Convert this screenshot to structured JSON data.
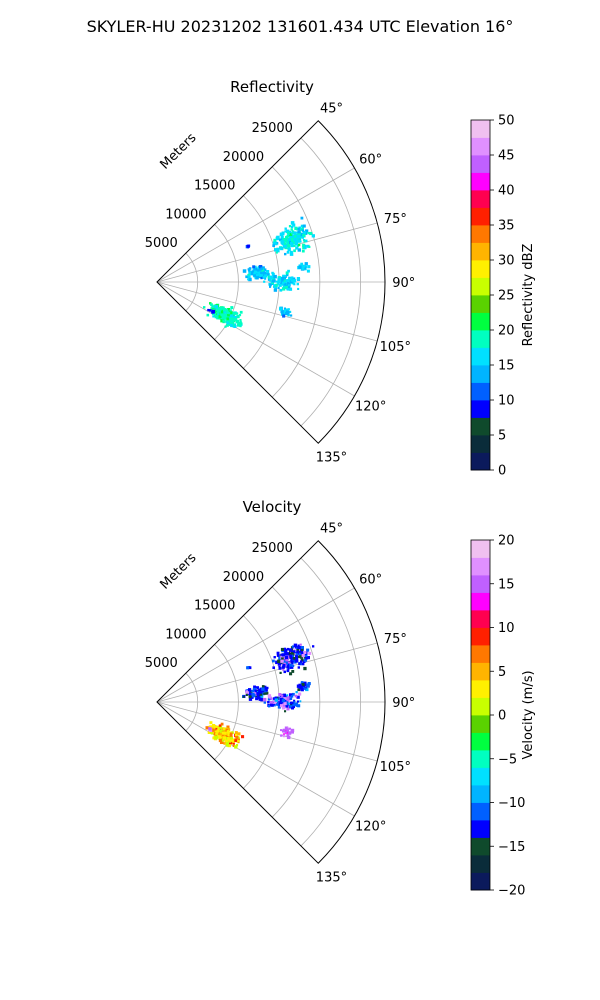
{
  "title": "SKYLER-HU  20231202  131601.434 UTC Elevation 16°",
  "chart_data": [
    {
      "type": "heatmap",
      "title": "Reflectivity",
      "projection": "polar-sector",
      "theta_range_deg": [
        45,
        135
      ],
      "theta_ticks": [
        "45°",
        "60°",
        "75°",
        "90°",
        "105°",
        "120°",
        "135°"
      ],
      "theta_tick_values": [
        45,
        60,
        75,
        90,
        105,
        120,
        135
      ],
      "r_label": "Meters",
      "r_range": [
        0,
        28000
      ],
      "r_ticks": [
        "5000",
        "10000",
        "15000",
        "20000",
        "25000"
      ],
      "r_tick_values": [
        5000,
        10000,
        15000,
        20000,
        25000
      ],
      "grid": true,
      "colorbar": {
        "label": "Reflectivity dBZ",
        "range": [
          0,
          50
        ],
        "ticks": [
          "0",
          "5",
          "10",
          "15",
          "20",
          "25",
          "30",
          "35",
          "40",
          "45",
          "50"
        ],
        "tick_values": [
          0,
          5,
          10,
          15,
          20,
          25,
          30,
          35,
          40,
          45,
          50
        ],
        "colors": [
          "#0b1a5c",
          "#0a2c3a",
          "#0f4a2c",
          "#0000ff",
          "#0060ff",
          "#00b4ff",
          "#00e0ff",
          "#00ffc0",
          "#00ff40",
          "#5ad200",
          "#c8ff00",
          "#fff000",
          "#ffb400",
          "#ff7800",
          "#ff2000",
          "#ff0050",
          "#ff00ff",
          "#c060ff",
          "#e090ff",
          "#f0c0f0"
        ]
      },
      "echoes": [
        {
          "theta": 72,
          "r": 17500,
          "value": 17,
          "spread_r": 1800,
          "spread_t": 4.0,
          "n": 170
        },
        {
          "theta": 85,
          "r": 12500,
          "value": 15,
          "spread_r": 1300,
          "spread_t": 3.0,
          "n": 90
        },
        {
          "theta": 90,
          "r": 15500,
          "value": 16,
          "spread_r": 1700,
          "spread_t": 3.0,
          "n": 110
        },
        {
          "theta": 84,
          "r": 18000,
          "value": 16,
          "spread_r": 600,
          "spread_t": 1.5,
          "n": 25
        },
        {
          "theta": 116,
          "r": 9200,
          "value": 19,
          "spread_r": 1700,
          "spread_t": 5.0,
          "n": 190
        },
        {
          "theta": 103,
          "r": 16400,
          "value": 15,
          "spread_r": 700,
          "spread_t": 1.5,
          "n": 22
        },
        {
          "theta": 69,
          "r": 12000,
          "value": 11,
          "spread_r": 200,
          "spread_t": 0.8,
          "n": 4
        },
        {
          "theta": 118,
          "r": 7500,
          "value": 9,
          "spread_r": 300,
          "spread_t": 1.0,
          "n": 5
        }
      ]
    },
    {
      "type": "heatmap",
      "title": "Velocity",
      "projection": "polar-sector",
      "theta_range_deg": [
        45,
        135
      ],
      "theta_ticks": [
        "45°",
        "60°",
        "75°",
        "90°",
        "105°",
        "120°",
        "135°"
      ],
      "theta_tick_values": [
        45,
        60,
        75,
        90,
        105,
        120,
        135
      ],
      "r_label": "Meters",
      "r_range": [
        0,
        28000
      ],
      "r_ticks": [
        "5000",
        "10000",
        "15000",
        "20000",
        "25000"
      ],
      "r_tick_values": [
        5000,
        10000,
        15000,
        20000,
        25000
      ],
      "grid": true,
      "colorbar": {
        "label": "Velocity (m/s)",
        "range": [
          -20,
          20
        ],
        "ticks": [
          "−20",
          "−15",
          "−10",
          "−5",
          "0",
          "5",
          "10",
          "15",
          "20"
        ],
        "tick_values": [
          -20,
          -15,
          -10,
          -5,
          0,
          5,
          10,
          15,
          20
        ],
        "colors": [
          "#0b1a5c",
          "#0a2c3a",
          "#0f4a2c",
          "#0000ff",
          "#0060ff",
          "#00b4ff",
          "#00e0ff",
          "#00ffc0",
          "#00ff40",
          "#5ad200",
          "#c8ff00",
          "#fff000",
          "#ffb400",
          "#ff7800",
          "#ff2000",
          "#ff0050",
          "#ff00ff",
          "#c060ff",
          "#e090ff",
          "#f0c0f0"
        ]
      },
      "echoes": [
        {
          "theta": 72,
          "r": 17500,
          "value": -13,
          "spread_r": 1800,
          "spread_t": 4.0,
          "n": 170,
          "alt_value": 16,
          "alt_frac": 0.15
        },
        {
          "theta": 85,
          "r": 12500,
          "value": -13,
          "spread_r": 1300,
          "spread_t": 3.0,
          "n": 90,
          "alt_value": 16,
          "alt_frac": 0.1
        },
        {
          "theta": 90,
          "r": 15500,
          "value": -12,
          "spread_r": 1700,
          "spread_t": 3.0,
          "n": 110,
          "alt_value": 16,
          "alt_frac": 0.3
        },
        {
          "theta": 84,
          "r": 18000,
          "value": -12,
          "spread_r": 600,
          "spread_t": 1.5,
          "n": 25
        },
        {
          "theta": 116,
          "r": 9200,
          "value": 3,
          "spread_r": 1700,
          "spread_t": 5.0,
          "n": 190,
          "alt_value": 7,
          "alt_frac": 0.25
        },
        {
          "theta": 103,
          "r": 16400,
          "value": 15,
          "spread_r": 700,
          "spread_t": 1.5,
          "n": 22
        },
        {
          "theta": 69,
          "r": 12000,
          "value": -11,
          "spread_r": 200,
          "spread_t": 0.8,
          "n": 4
        },
        {
          "theta": 118,
          "r": 7500,
          "value": 16,
          "spread_r": 300,
          "spread_t": 1.0,
          "n": 5
        }
      ]
    }
  ]
}
